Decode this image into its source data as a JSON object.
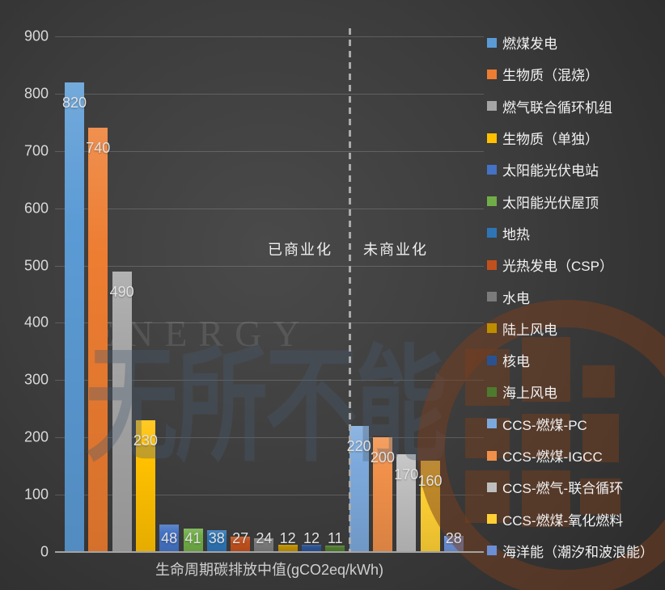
{
  "watermark": {
    "energy": "ENERGY",
    "slogan": "无所不能"
  },
  "chart_data": {
    "type": "bar",
    "title": "",
    "xlabel": "生命周期碳排放中值(gCO2eq/kWh)",
    "ylabel": "",
    "ylim": [
      0,
      900
    ],
    "yticks": [
      900,
      800,
      700,
      600,
      500,
      400,
      300,
      200,
      100,
      0
    ],
    "grid": true,
    "legend_position": "right",
    "annotations": {
      "left_group": "已商业化",
      "right_group": "未商业化",
      "divider_after_index": 11
    },
    "categories": [
      "燃煤发电",
      "生物质（混烧）",
      "燃气联合循环机组",
      "生物质（单独）",
      "太阳能光伏电站",
      "太阳能光伏屋顶",
      "地热",
      "光热发电（CSP）",
      "水电",
      "陆上风电",
      "核电",
      "海上风电",
      "CCS-燃煤-PC",
      "CCS-燃煤-IGCC",
      "CCS-燃气-联合循环",
      "CCS-燃煤-氧化燃料",
      "海洋能（潮汐和波浪能）"
    ],
    "values": [
      820,
      740,
      490,
      230,
      48,
      41,
      38,
      27,
      24,
      12,
      12,
      11,
      220,
      200,
      170,
      160,
      28
    ],
    "colors": [
      "#5B9BD5",
      "#ED7D31",
      "#A5A5A5",
      "#FFC000",
      "#4472C4",
      "#70AD47",
      "#2E75B6",
      "#C0501D",
      "#7B7B7B",
      "#BD8E00",
      "#2A5291",
      "#4E7A2E",
      "#7CA9DC",
      "#F0904A",
      "#BEBEBE",
      "#FFD034",
      "#6B8FD6"
    ],
    "value_label_color": "#E2E2E2",
    "watermark_ring_color": "#7A3E1E"
  }
}
